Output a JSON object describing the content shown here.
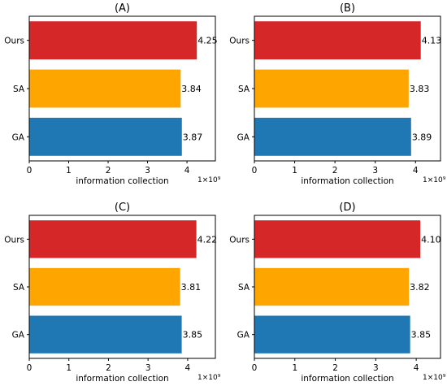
{
  "chart_data": [
    {
      "type": "bar",
      "orientation": "horizontal",
      "title": "(A)",
      "categories": [
        "Ours",
        "SA",
        "GA"
      ],
      "values": [
        4.25,
        3.84,
        3.87
      ],
      "data_labels": [
        "4.25",
        "3.84",
        "3.87"
      ],
      "colors": [
        "#d62728",
        "#ffa500",
        "#1f77b4"
      ],
      "xlabel": "information collection",
      "x_multiplier": "1×10⁹",
      "xticks": [
        "0",
        "1",
        "2",
        "3",
        "4"
      ],
      "xlim": [
        0,
        4.72
      ],
      "grid": false
    },
    {
      "type": "bar",
      "orientation": "horizontal",
      "title": "(B)",
      "categories": [
        "Ours",
        "SA",
        "GA"
      ],
      "values": [
        4.13,
        3.83,
        3.89
      ],
      "data_labels": [
        "4.13",
        "3.83",
        "3.89"
      ],
      "colors": [
        "#d62728",
        "#ffa500",
        "#1f77b4"
      ],
      "xlabel": "information collection",
      "x_multiplier": "1×10⁹",
      "xticks": [
        "0",
        "1",
        "2",
        "3",
        "4"
      ],
      "xlim": [
        0,
        4.62
      ],
      "grid": false
    },
    {
      "type": "bar",
      "orientation": "horizontal",
      "title": "(C)",
      "categories": [
        "Ours",
        "SA",
        "GA"
      ],
      "values": [
        4.22,
        3.81,
        3.85
      ],
      "data_labels": [
        "4.22",
        "3.81",
        "3.85"
      ],
      "colors": [
        "#d62728",
        "#ffa500",
        "#1f77b4"
      ],
      "xlabel": "information collection",
      "x_multiplier": "1×10⁹",
      "xticks": [
        "0",
        "1",
        "2",
        "3",
        "4"
      ],
      "xlim": [
        0,
        4.7
      ],
      "grid": false
    },
    {
      "type": "bar",
      "orientation": "horizontal",
      "title": "(D)",
      "categories": [
        "Ours",
        "SA",
        "GA"
      ],
      "values": [
        4.1,
        3.82,
        3.85
      ],
      "data_labels": [
        "4.10",
        "3.82",
        "3.85"
      ],
      "colors": [
        "#d62728",
        "#ffa500",
        "#1f77b4"
      ],
      "xlabel": "information collection",
      "x_multiplier": "1×10⁹",
      "xticks": [
        "0",
        "1",
        "2",
        "3",
        "4"
      ],
      "xlim": [
        0,
        4.6
      ],
      "grid": false
    }
  ]
}
